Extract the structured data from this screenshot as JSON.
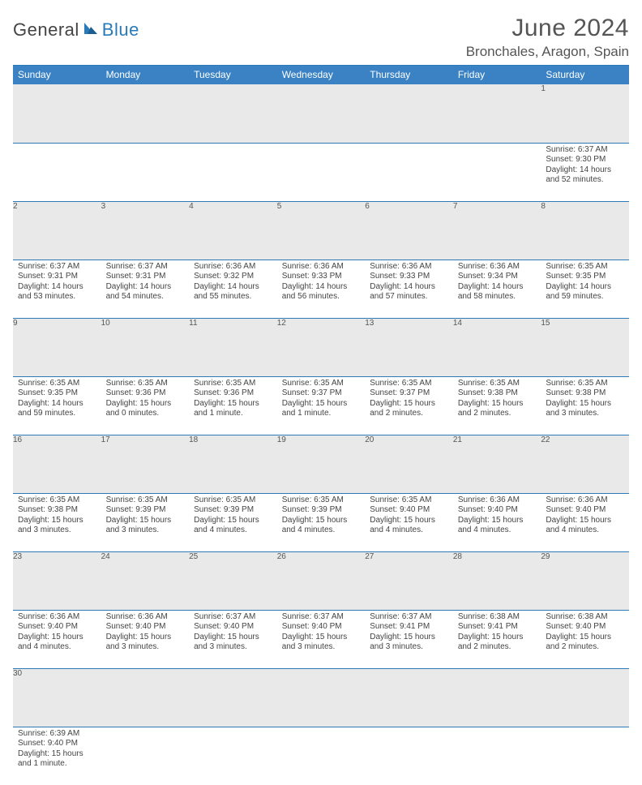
{
  "brand": {
    "part1": "General",
    "part2": "Blue",
    "logo_color": "#2a7ab8"
  },
  "title": "June 2024",
  "location": "Bronchales, Aragon, Spain",
  "colors": {
    "header_bg": "#3a82c4",
    "rule": "#2a7ab8",
    "daynum_bg": "#e9e9e9",
    "text": "#444444"
  },
  "day_headers": [
    "Sunday",
    "Monday",
    "Tuesday",
    "Wednesday",
    "Thursday",
    "Friday",
    "Saturday"
  ],
  "weeks": [
    {
      "nums": [
        "",
        "",
        "",
        "",
        "",
        "",
        "1"
      ],
      "cells": [
        null,
        null,
        null,
        null,
        null,
        null,
        {
          "sr": "Sunrise: 6:37 AM",
          "ss": "Sunset: 9:30 PM",
          "dl": "Daylight: 14 hours and 52 minutes."
        }
      ]
    },
    {
      "nums": [
        "2",
        "3",
        "4",
        "5",
        "6",
        "7",
        "8"
      ],
      "cells": [
        {
          "sr": "Sunrise: 6:37 AM",
          "ss": "Sunset: 9:31 PM",
          "dl": "Daylight: 14 hours and 53 minutes."
        },
        {
          "sr": "Sunrise: 6:37 AM",
          "ss": "Sunset: 9:31 PM",
          "dl": "Daylight: 14 hours and 54 minutes."
        },
        {
          "sr": "Sunrise: 6:36 AM",
          "ss": "Sunset: 9:32 PM",
          "dl": "Daylight: 14 hours and 55 minutes."
        },
        {
          "sr": "Sunrise: 6:36 AM",
          "ss": "Sunset: 9:33 PM",
          "dl": "Daylight: 14 hours and 56 minutes."
        },
        {
          "sr": "Sunrise: 6:36 AM",
          "ss": "Sunset: 9:33 PM",
          "dl": "Daylight: 14 hours and 57 minutes."
        },
        {
          "sr": "Sunrise: 6:36 AM",
          "ss": "Sunset: 9:34 PM",
          "dl": "Daylight: 14 hours and 58 minutes."
        },
        {
          "sr": "Sunrise: 6:35 AM",
          "ss": "Sunset: 9:35 PM",
          "dl": "Daylight: 14 hours and 59 minutes."
        }
      ]
    },
    {
      "nums": [
        "9",
        "10",
        "11",
        "12",
        "13",
        "14",
        "15"
      ],
      "cells": [
        {
          "sr": "Sunrise: 6:35 AM",
          "ss": "Sunset: 9:35 PM",
          "dl": "Daylight: 14 hours and 59 minutes."
        },
        {
          "sr": "Sunrise: 6:35 AM",
          "ss": "Sunset: 9:36 PM",
          "dl": "Daylight: 15 hours and 0 minutes."
        },
        {
          "sr": "Sunrise: 6:35 AM",
          "ss": "Sunset: 9:36 PM",
          "dl": "Daylight: 15 hours and 1 minute."
        },
        {
          "sr": "Sunrise: 6:35 AM",
          "ss": "Sunset: 9:37 PM",
          "dl": "Daylight: 15 hours and 1 minute."
        },
        {
          "sr": "Sunrise: 6:35 AM",
          "ss": "Sunset: 9:37 PM",
          "dl": "Daylight: 15 hours and 2 minutes."
        },
        {
          "sr": "Sunrise: 6:35 AM",
          "ss": "Sunset: 9:38 PM",
          "dl": "Daylight: 15 hours and 2 minutes."
        },
        {
          "sr": "Sunrise: 6:35 AM",
          "ss": "Sunset: 9:38 PM",
          "dl": "Daylight: 15 hours and 3 minutes."
        }
      ]
    },
    {
      "nums": [
        "16",
        "17",
        "18",
        "19",
        "20",
        "21",
        "22"
      ],
      "cells": [
        {
          "sr": "Sunrise: 6:35 AM",
          "ss": "Sunset: 9:38 PM",
          "dl": "Daylight: 15 hours and 3 minutes."
        },
        {
          "sr": "Sunrise: 6:35 AM",
          "ss": "Sunset: 9:39 PM",
          "dl": "Daylight: 15 hours and 3 minutes."
        },
        {
          "sr": "Sunrise: 6:35 AM",
          "ss": "Sunset: 9:39 PM",
          "dl": "Daylight: 15 hours and 4 minutes."
        },
        {
          "sr": "Sunrise: 6:35 AM",
          "ss": "Sunset: 9:39 PM",
          "dl": "Daylight: 15 hours and 4 minutes."
        },
        {
          "sr": "Sunrise: 6:35 AM",
          "ss": "Sunset: 9:40 PM",
          "dl": "Daylight: 15 hours and 4 minutes."
        },
        {
          "sr": "Sunrise: 6:36 AM",
          "ss": "Sunset: 9:40 PM",
          "dl": "Daylight: 15 hours and 4 minutes."
        },
        {
          "sr": "Sunrise: 6:36 AM",
          "ss": "Sunset: 9:40 PM",
          "dl": "Daylight: 15 hours and 4 minutes."
        }
      ]
    },
    {
      "nums": [
        "23",
        "24",
        "25",
        "26",
        "27",
        "28",
        "29"
      ],
      "cells": [
        {
          "sr": "Sunrise: 6:36 AM",
          "ss": "Sunset: 9:40 PM",
          "dl": "Daylight: 15 hours and 4 minutes."
        },
        {
          "sr": "Sunrise: 6:36 AM",
          "ss": "Sunset: 9:40 PM",
          "dl": "Daylight: 15 hours and 3 minutes."
        },
        {
          "sr": "Sunrise: 6:37 AM",
          "ss": "Sunset: 9:40 PM",
          "dl": "Daylight: 15 hours and 3 minutes."
        },
        {
          "sr": "Sunrise: 6:37 AM",
          "ss": "Sunset: 9:40 PM",
          "dl": "Daylight: 15 hours and 3 minutes."
        },
        {
          "sr": "Sunrise: 6:37 AM",
          "ss": "Sunset: 9:41 PM",
          "dl": "Daylight: 15 hours and 3 minutes."
        },
        {
          "sr": "Sunrise: 6:38 AM",
          "ss": "Sunset: 9:41 PM",
          "dl": "Daylight: 15 hours and 2 minutes."
        },
        {
          "sr": "Sunrise: 6:38 AM",
          "ss": "Sunset: 9:40 PM",
          "dl": "Daylight: 15 hours and 2 minutes."
        }
      ]
    },
    {
      "nums": [
        "30",
        "",
        "",
        "",
        "",
        "",
        ""
      ],
      "cells": [
        {
          "sr": "Sunrise: 6:39 AM",
          "ss": "Sunset: 9:40 PM",
          "dl": "Daylight: 15 hours and 1 minute."
        },
        null,
        null,
        null,
        null,
        null,
        null
      ],
      "last": true
    }
  ]
}
